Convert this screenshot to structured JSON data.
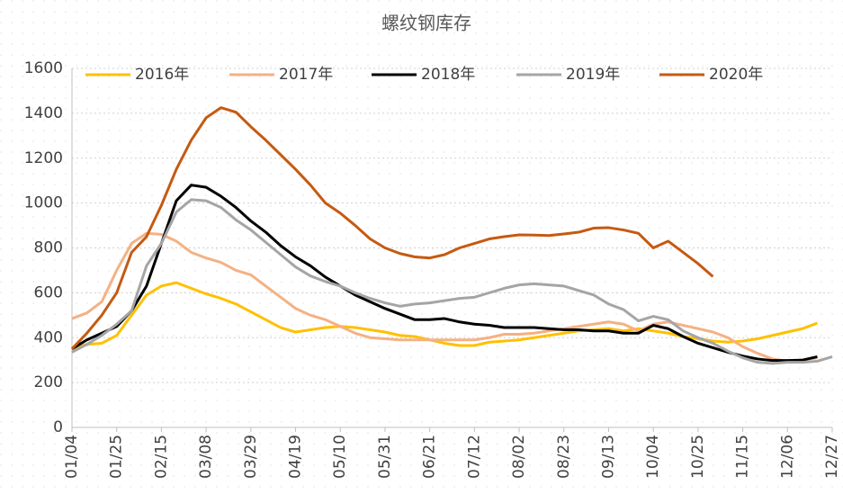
{
  "chart_data": {
    "type": "line",
    "title": "螺纹钢库存",
    "categories": [
      "01/04",
      null,
      null,
      "01/25",
      null,
      null,
      "02/15",
      null,
      null,
      "03/08",
      null,
      null,
      "03/29",
      null,
      null,
      "04/19",
      null,
      null,
      "05/10",
      null,
      null,
      "05/31",
      null,
      null,
      "06/21",
      null,
      null,
      "07/12",
      null,
      null,
      "08/02",
      null,
      null,
      "08/23",
      null,
      null,
      "09/13",
      null,
      null,
      "10/04",
      null,
      null,
      "10/25",
      null,
      null,
      "11/15",
      null,
      null,
      "12/06",
      null,
      null,
      "12/27"
    ],
    "series": [
      {
        "name": "2016年",
        "color": "#FFC000",
        "values": [
          350,
          370,
          375,
          410,
          500,
          590,
          630,
          645,
          620,
          595,
          575,
          550,
          515,
          480,
          445,
          425,
          435,
          445,
          450,
          445,
          435,
          425,
          410,
          405,
          390,
          375,
          365,
          365,
          380,
          385,
          390,
          400,
          410,
          420,
          430,
          435,
          440,
          430,
          440,
          430,
          420,
          405,
          395,
          385,
          380,
          385,
          395,
          410,
          425,
          440,
          465,
          null
        ]
      },
      {
        "name": "2017年",
        "color": "#F4B183",
        "values": [
          485,
          510,
          560,
          700,
          820,
          865,
          860,
          830,
          780,
          755,
          735,
          700,
          680,
          630,
          580,
          530,
          500,
          480,
          450,
          420,
          400,
          395,
          390,
          390,
          390,
          390,
          390,
          390,
          400,
          415,
          415,
          420,
          430,
          440,
          450,
          460,
          470,
          460,
          430,
          460,
          470,
          455,
          440,
          425,
          400,
          360,
          330,
          305,
          295,
          300,
          310,
          null
        ]
      },
      {
        "name": "2018年",
        "color": "#000000",
        "values": [
          350,
          390,
          420,
          450,
          520,
          630,
          820,
          1010,
          1080,
          1070,
          1030,
          980,
          920,
          870,
          810,
          760,
          720,
          670,
          630,
          590,
          560,
          530,
          505,
          480,
          480,
          485,
          470,
          460,
          455,
          445,
          445,
          445,
          440,
          435,
          435,
          430,
          430,
          420,
          420,
          455,
          440,
          405,
          375,
          355,
          335,
          318,
          305,
          298,
          298,
          300,
          315,
          null
        ]
      },
      {
        "name": "2019年",
        "color": "#A5A5A5",
        "values": [
          335,
          370,
          410,
          460,
          520,
          720,
          820,
          960,
          1015,
          1010,
          980,
          925,
          880,
          825,
          770,
          715,
          675,
          650,
          630,
          600,
          575,
          555,
          540,
          550,
          555,
          565,
          575,
          580,
          600,
          620,
          635,
          640,
          635,
          630,
          610,
          590,
          550,
          525,
          475,
          495,
          480,
          430,
          400,
          375,
          340,
          310,
          290,
          285,
          290,
          290,
          295,
          315
        ]
      },
      {
        "name": "2020年",
        "color": "#C55A11",
        "values": [
          350,
          420,
          500,
          600,
          780,
          850,
          990,
          1150,
          1280,
          1380,
          1425,
          1405,
          1340,
          1280,
          1215,
          1150,
          1080,
          1000,
          955,
          900,
          840,
          800,
          775,
          760,
          755,
          770,
          800,
          820,
          840,
          850,
          858,
          857,
          855,
          862,
          870,
          888,
          890,
          880,
          865,
          800,
          830,
          780,
          730,
          672,
          null,
          null,
          null,
          null,
          null,
          null,
          null,
          null
        ]
      }
    ],
    "ylim": [
      0,
      1600
    ],
    "yticks": [
      0,
      200,
      400,
      600,
      800,
      1000,
      1200,
      1400,
      1600
    ],
    "grid": true,
    "legend": "top"
  }
}
